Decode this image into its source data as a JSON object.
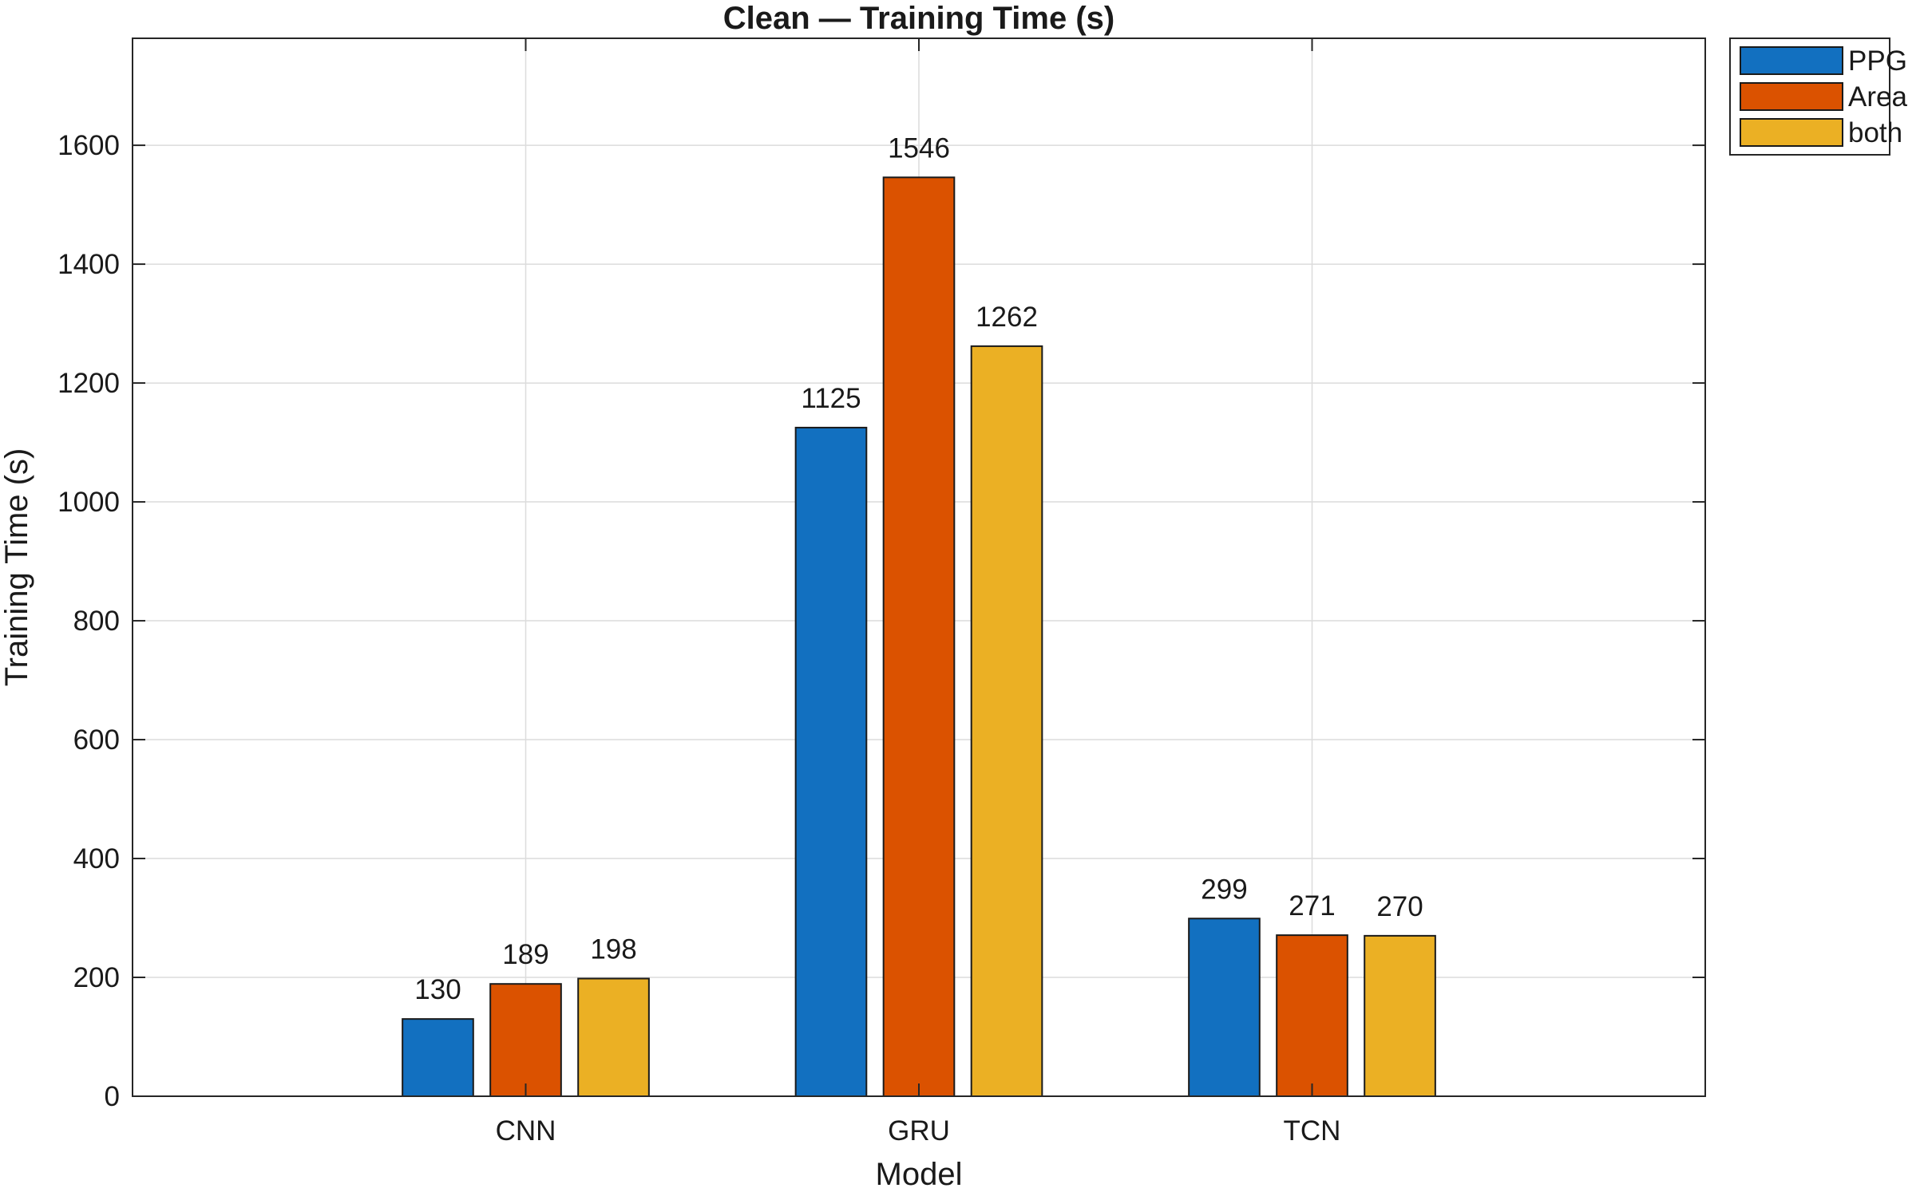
{
  "chart_data": {
    "type": "bar",
    "title": "Clean — Training Time (s)",
    "xlabel": "Model",
    "ylabel": "Training Time (s)",
    "categories": [
      "CNN",
      "GRU",
      "TCN"
    ],
    "series": [
      {
        "name": "PPG",
        "values": [
          130,
          1125,
          299
        ],
        "color": "#1270c0"
      },
      {
        "name": "Area",
        "values": [
          189,
          1546,
          271
        ],
        "color": "#db5200"
      },
      {
        "name": "both",
        "values": [
          198,
          1262,
          270
        ],
        "color": "#ebb024"
      }
    ],
    "ylim": [
      0,
      1780
    ],
    "yticks": [
      0,
      200,
      400,
      600,
      800,
      1000,
      1200,
      1400,
      1600
    ],
    "grid": true,
    "legend_position": "outside-top-right"
  }
}
